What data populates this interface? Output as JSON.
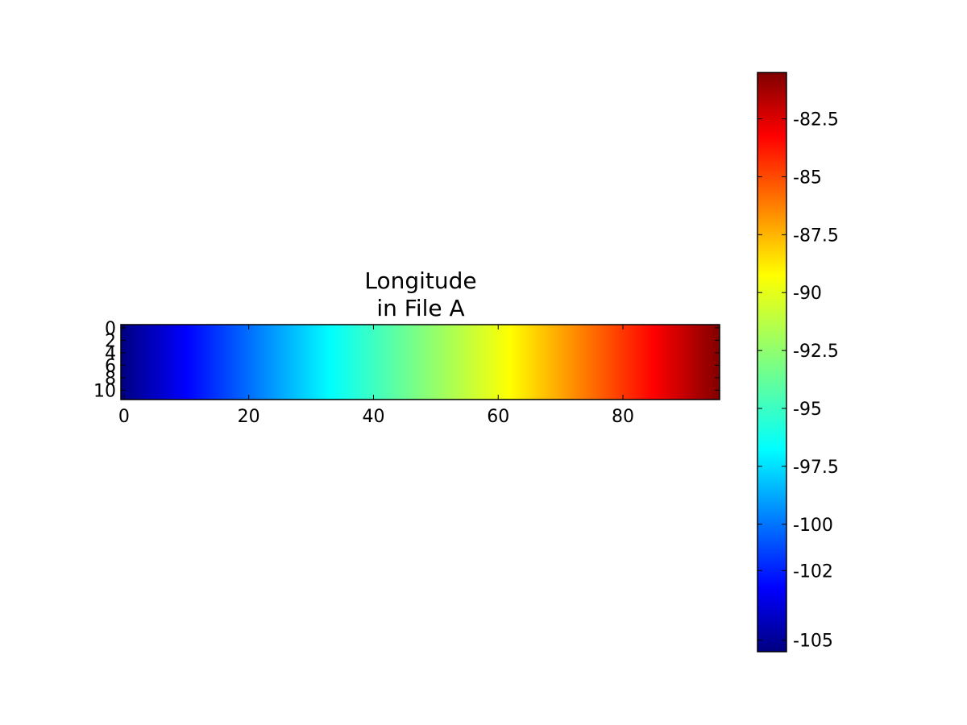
{
  "chart_data": {
    "type": "heatmap",
    "title_lines": [
      "Longitude",
      "in File A"
    ],
    "xlabel": "",
    "ylabel": "",
    "grid": false,
    "colormap": "jet",
    "colormap_stops": [
      "#000080",
      "#0000ff",
      "#00ffff",
      "#ffff00",
      "#ff0000",
      "#800000"
    ],
    "n_rows": 12,
    "n_cols": 96,
    "x_range": [
      -0.5,
      95.5
    ],
    "y_range": [
      -0.5,
      11.5
    ],
    "x_ticks": [
      0,
      20,
      40,
      60,
      80
    ],
    "y_ticks": [
      0,
      2,
      4,
      6,
      8,
      10
    ],
    "value_range": [
      -105.5,
      -80.5
    ],
    "column_values": {
      "description": "Longitude varies linearly across columns; constant down rows",
      "col0": -105.5,
      "col95": -80.5
    },
    "colorbar": {
      "vmin": -105.5,
      "vmax": -80.5,
      "ticks": [
        -105,
        -102,
        -100,
        -97.5,
        -95,
        -92.5,
        -90,
        -87.5,
        -85,
        -82.5
      ],
      "tick_labels": [
        "-105",
        "-102",
        "-100",
        "-97.5",
        "-95",
        "-92.5",
        "-90",
        "-87.5",
        "-85",
        "-82.5"
      ]
    }
  }
}
